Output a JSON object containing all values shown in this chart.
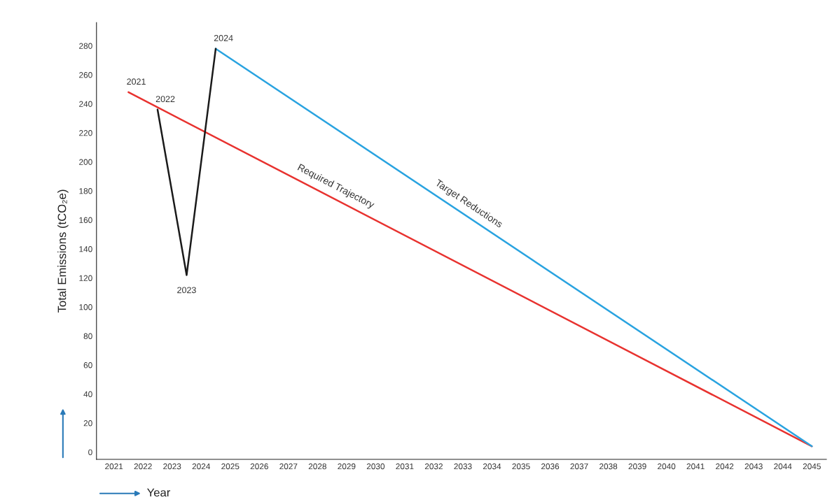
{
  "chart_data": {
    "type": "line",
    "xlabel": "Year",
    "ylabel": "Total Emissions (tCO₂e)",
    "xlim": [
      2020.4,
      2045.5
    ],
    "ylim": [
      -5,
      296
    ],
    "xticks": [
      2021,
      2022,
      2023,
      2024,
      2025,
      2026,
      2027,
      2028,
      2029,
      2030,
      2031,
      2032,
      2033,
      2034,
      2035,
      2036,
      2037,
      2038,
      2039,
      2040,
      2041,
      2042,
      2043,
      2044,
      2045
    ],
    "yticks": [
      0,
      20,
      40,
      60,
      80,
      100,
      120,
      140,
      160,
      180,
      200,
      220,
      240,
      260,
      280
    ],
    "grid": false,
    "legend": false,
    "marker": "none",
    "line_style": "solid",
    "series": [
      {
        "name": "Required Trajectory",
        "color": "#e8322f",
        "x": [
          2021.5,
          2045
        ],
        "values": [
          248,
          4
        ]
      },
      {
        "name": "Target Reductions",
        "color": "#29a3e0",
        "x": [
          2024.5,
          2045
        ],
        "values": [
          278,
          4
        ]
      },
      {
        "color": "#1a1a1a",
        "x": [
          2022.5,
          2023.5,
          2024.5
        ],
        "values": [
          236,
          122,
          278
        ]
      }
    ],
    "annotations": [
      {
        "text": "2021",
        "x": 2021.5,
        "y": 248
      },
      {
        "text": "2022",
        "x": 2022.5,
        "y": 236
      },
      {
        "text": "2023",
        "x": 2023.5,
        "y": 122
      },
      {
        "text": "2024",
        "x": 2024.5,
        "y": 278
      }
    ]
  }
}
